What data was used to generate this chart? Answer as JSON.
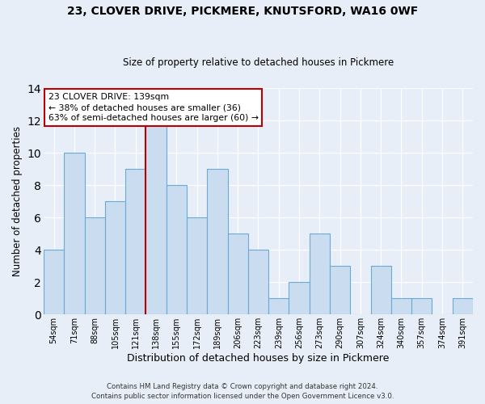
{
  "title1": "23, CLOVER DRIVE, PICKMERE, KNUTSFORD, WA16 0WF",
  "title2": "Size of property relative to detached houses in Pickmere",
  "xlabel": "Distribution of detached houses by size in Pickmere",
  "ylabel": "Number of detached properties",
  "bin_labels": [
    "54sqm",
    "71sqm",
    "88sqm",
    "105sqm",
    "121sqm",
    "138sqm",
    "155sqm",
    "172sqm",
    "189sqm",
    "206sqm",
    "223sqm",
    "239sqm",
    "256sqm",
    "273sqm",
    "290sqm",
    "307sqm",
    "324sqm",
    "340sqm",
    "357sqm",
    "374sqm",
    "391sqm"
  ],
  "bar_heights": [
    4,
    10,
    6,
    7,
    9,
    12,
    8,
    6,
    9,
    5,
    4,
    1,
    2,
    5,
    3,
    0,
    3,
    1,
    1,
    0,
    1
  ],
  "bar_color": "#c9dcf0",
  "bar_edge_color": "#6aaad4",
  "vline_x_index": 5,
  "vline_color": "#bb0000",
  "annotation_title": "23 CLOVER DRIVE: 139sqm",
  "annotation_line1": "← 38% of detached houses are smaller (36)",
  "annotation_line2": "63% of semi-detached houses are larger (60) →",
  "annotation_box_color": "#ffffff",
  "annotation_box_edge_color": "#bb0000",
  "ylim": [
    0,
    14
  ],
  "yticks": [
    0,
    2,
    4,
    6,
    8,
    10,
    12,
    14
  ],
  "background_color": "#e8eef8",
  "footer1": "Contains HM Land Registry data © Crown copyright and database right 2024.",
  "footer2": "Contains public sector information licensed under the Open Government Licence v3.0."
}
